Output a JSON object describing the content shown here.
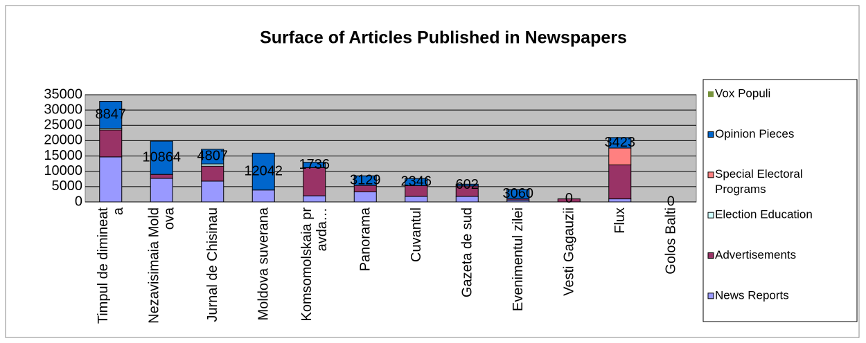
{
  "chart_data": {
    "type": "stacked_bar",
    "title": "Surface of Articles Published in Newspapers",
    "categories": [
      "Timpul de dimineata",
      "Nezavisimaia Moldova",
      "Jurnal de Chisinau",
      "Moldova suverana",
      "Komsomolskaia pravda…",
      "Panorama",
      "Cuvantul",
      "Gazeta de sud",
      "Evenimentul zilei",
      "Vesti Gagauzii",
      "Flux",
      "Golos Balti"
    ],
    "series": [
      {
        "name": "News Reports",
        "color": "#9999ff",
        "values": [
          14700,
          7700,
          6800,
          3900,
          2000,
          3300,
          1800,
          1800,
          600,
          0,
          1000,
          0
        ]
      },
      {
        "name": "Advertisements",
        "color": "#993366",
        "values": [
          8800,
          1300,
          4900,
          0,
          9200,
          2100,
          3500,
          3400,
          400,
          1000,
          11100,
          0
        ]
      },
      {
        "name": "Election Education",
        "color": "#ccffff",
        "values": [
          500,
          0,
          700,
          0,
          0,
          0,
          0,
          0,
          0,
          0,
          0,
          0
        ]
      },
      {
        "name": "Special Electoral Programs",
        "color": "#ff8080",
        "values": [
          0,
          0,
          0,
          0,
          0,
          0,
          0,
          0,
          0,
          0,
          5500,
          0
        ]
      },
      {
        "name": "Opinion Pieces",
        "color": "#0066cc",
        "values": [
          8847,
          10864,
          4807,
          12042,
          1736,
          3129,
          2346,
          602,
          3060,
          0,
          3423,
          0
        ]
      },
      {
        "name": "Vox Populi",
        "color": "#77933c",
        "values": [
          0,
          0,
          0,
          0,
          0,
          0,
          0,
          0,
          0,
          0,
          0,
          0
        ]
      }
    ],
    "labeled_series": 4,
    "ylim": [
      0,
      35000
    ],
    "yticks": [
      0,
      5000,
      10000,
      15000,
      20000,
      25000,
      30000,
      35000
    ],
    "grid": true
  }
}
